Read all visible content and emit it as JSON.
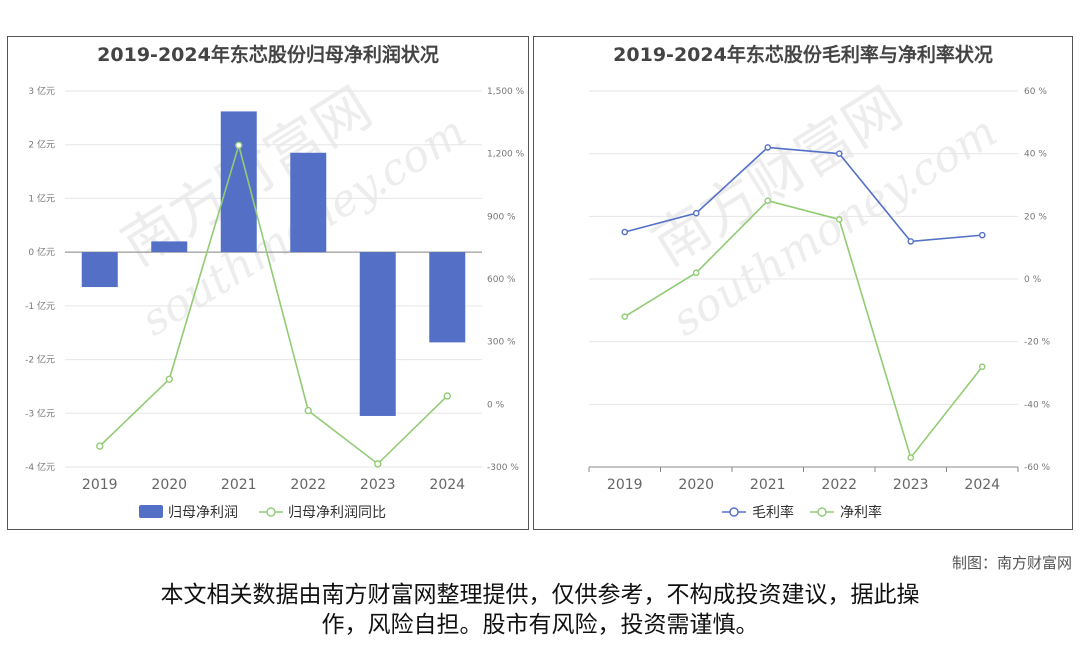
{
  "chart_data": [
    {
      "type": "bar",
      "title": "2019-2024年东芯股份归母净利润状况",
      "categories": [
        "2019",
        "2020",
        "2021",
        "2022",
        "2023",
        "2024"
      ],
      "ylim_left": [
        -4,
        3
      ],
      "left_ticks": [
        "3 亿元",
        "2 亿元",
        "1 亿元",
        "0 亿元",
        "-1 亿元",
        "-2 亿元",
        "-3 亿元",
        "-4 亿元"
      ],
      "ylim_right": [
        -300,
        1500
      ],
      "right_ticks": [
        "1,500 %",
        "1,200 %",
        "900 %",
        "600 %",
        "300 %",
        "0 %",
        "-300 %"
      ],
      "series": [
        {
          "name": "归母净利润",
          "kind": "bar",
          "axis": "left",
          "color": "#5470c6",
          "values": [
            -0.65,
            0.2,
            2.62,
            1.85,
            -3.05,
            -1.68
          ]
        },
        {
          "name": "归母净利润同比",
          "kind": "line",
          "axis": "right",
          "color": "#91cc75",
          "values": [
            -200,
            120,
            1240,
            -30,
            -285,
            40
          ]
        }
      ],
      "grid": true,
      "legend": "bottom"
    },
    {
      "type": "line",
      "title": "2019-2024年东芯股份毛利率与净利率状况",
      "categories": [
        "2019",
        "2020",
        "2021",
        "2022",
        "2023",
        "2024"
      ],
      "ylim": [
        -60,
        60
      ],
      "right_ticks": [
        "60 %",
        "40 %",
        "20 %",
        "0 %",
        "-20 %",
        "-40 %",
        "-60 %"
      ],
      "series": [
        {
          "name": "毛利率",
          "color": "#5470c6",
          "values": [
            15,
            21,
            42,
            40,
            12,
            14
          ]
        },
        {
          "name": "净利率",
          "color": "#91cc75",
          "values": [
            -12,
            2,
            25,
            19,
            -57,
            -28
          ]
        }
      ],
      "grid": true,
      "legend": "bottom"
    }
  ],
  "watermark": {
    "cn": "南方财富网",
    "en": "southmoney.com"
  },
  "credit": "制图：南方财富网",
  "disclaimer_line1": "本文相关数据由南方财富网整理提供，仅供参考，不构成投资建议，据此操",
  "disclaimer_line2": "作，风险自担。股市有风险，投资需谨慎。"
}
